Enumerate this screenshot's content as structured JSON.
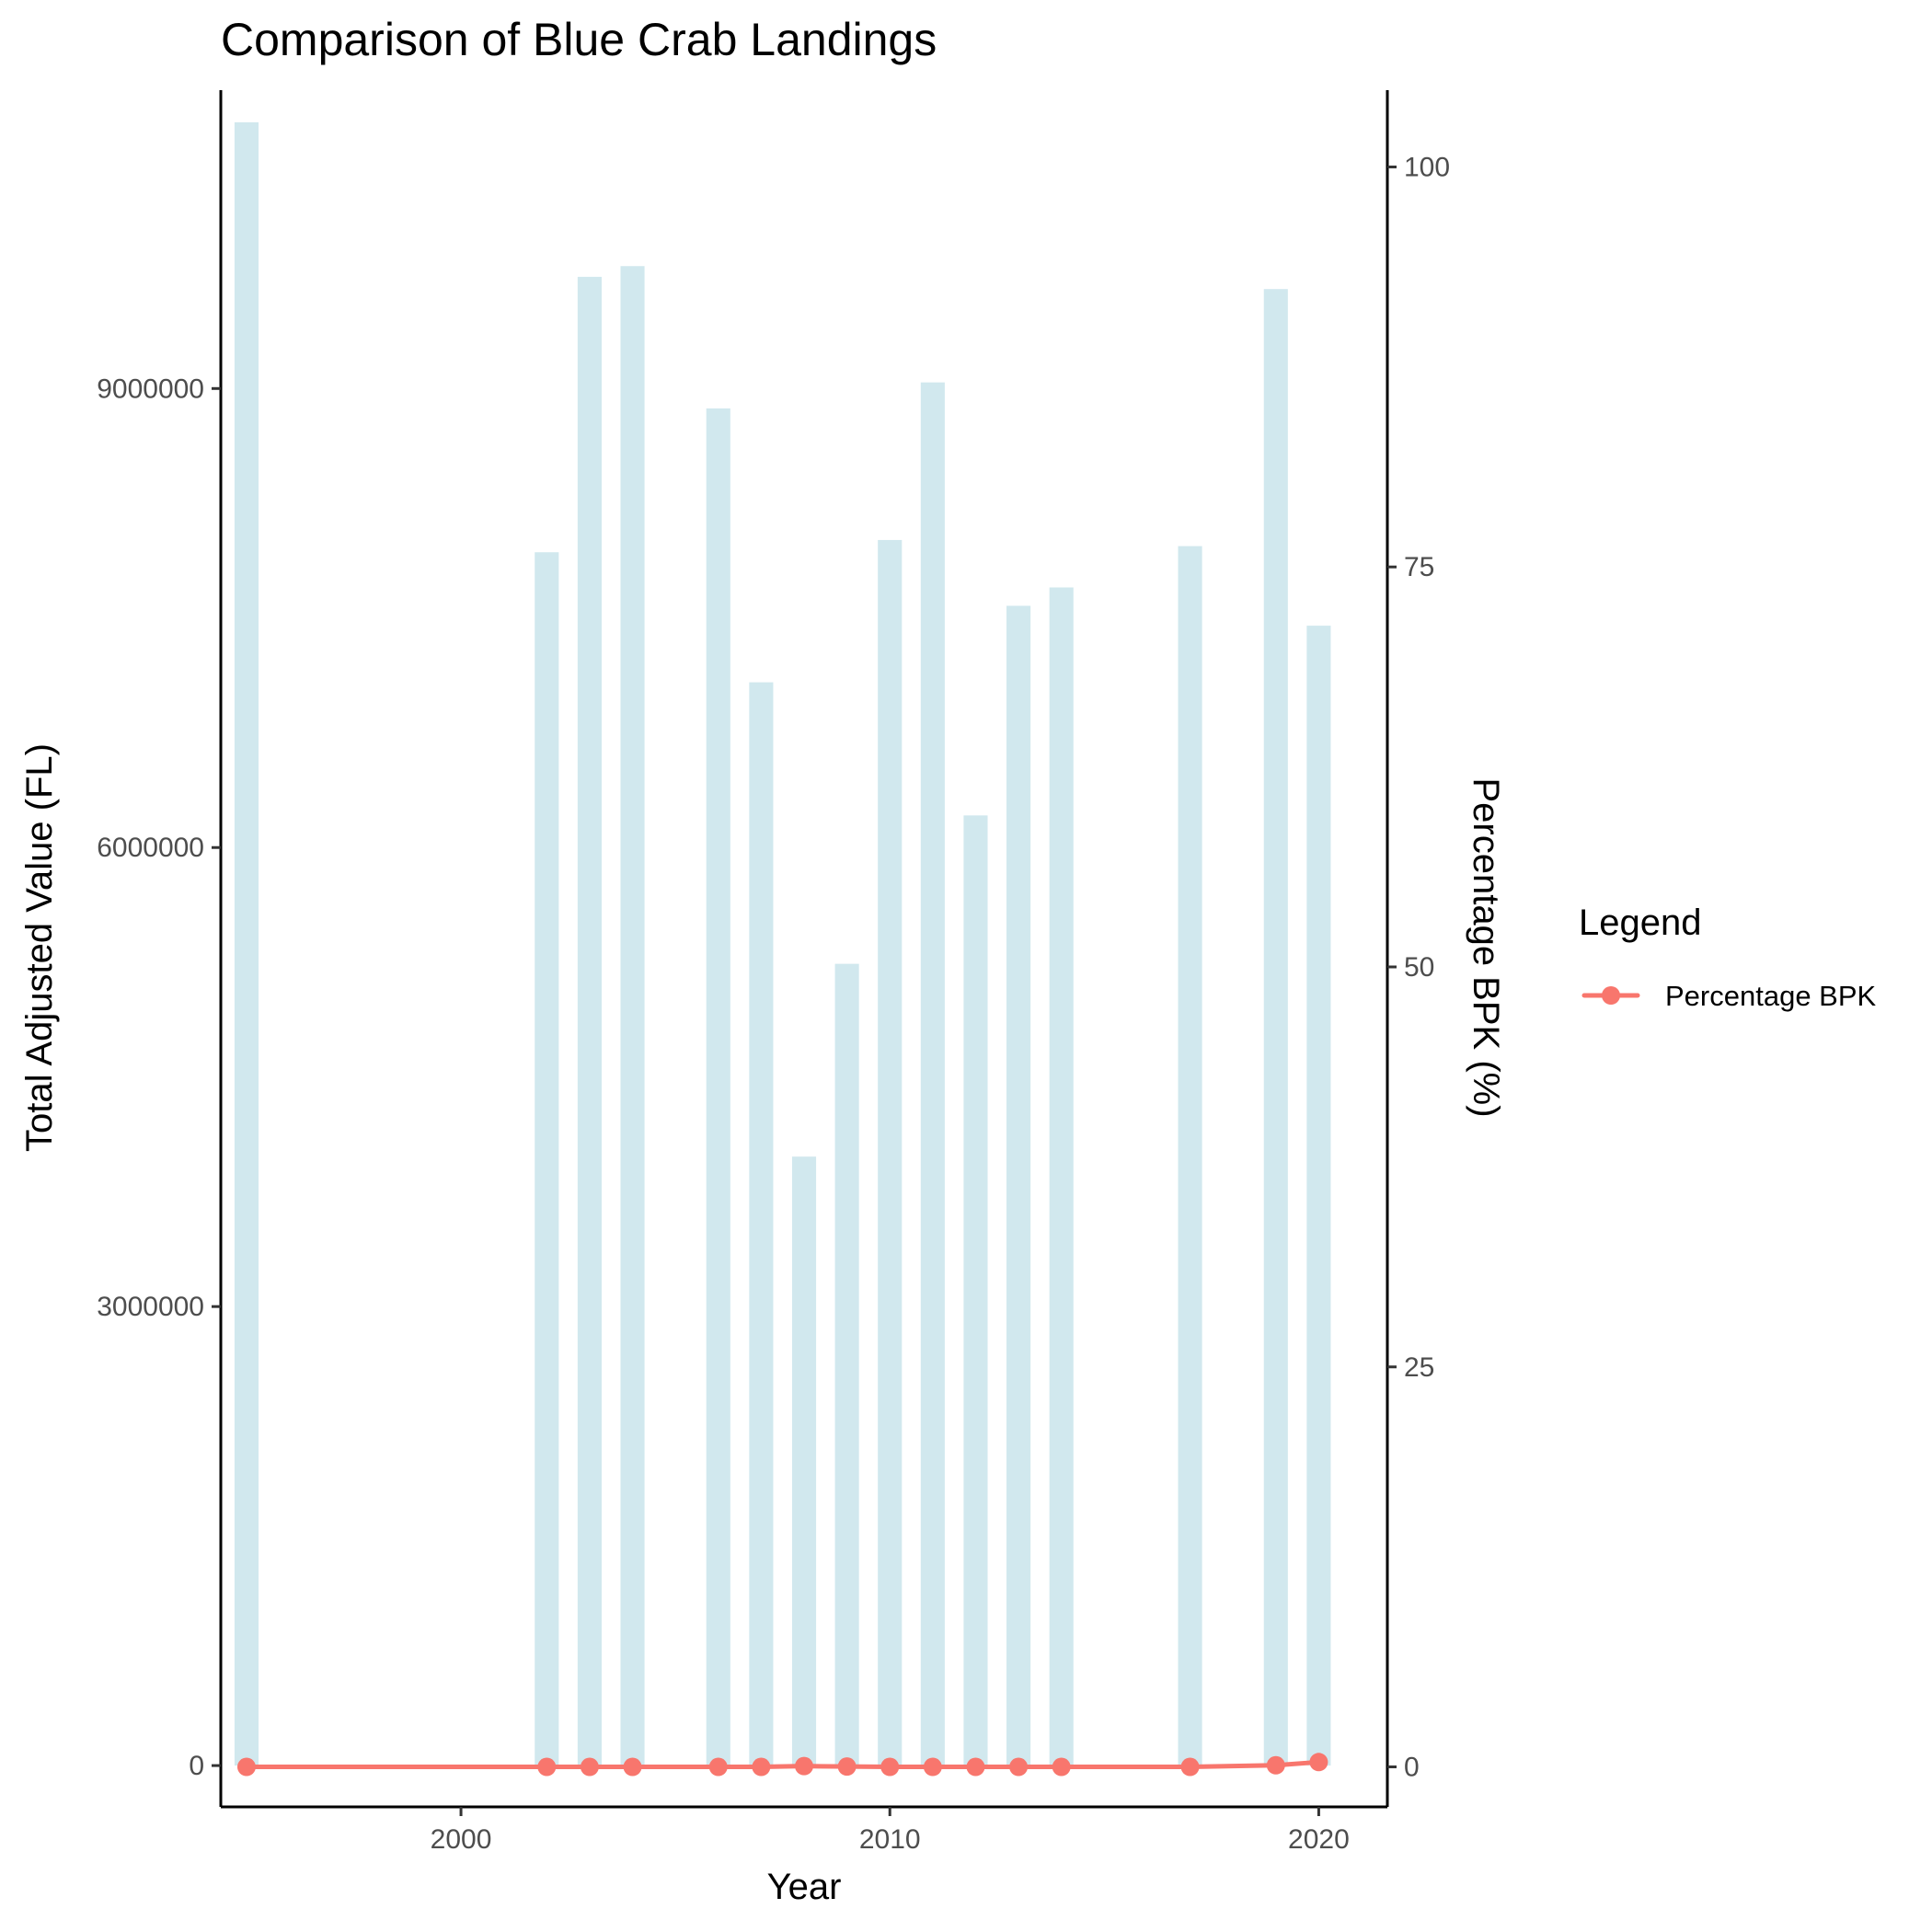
{
  "chart_data": {
    "type": "bar",
    "title": "Comparison of Blue Crab Landings",
    "xlabel": "Year",
    "ylabel": "Total Adjusted Value (FL)",
    "y2label": "Percentage BPK (%)",
    "xlim": [
      1994.4,
      2021.6
    ],
    "ylim": [
      -270000,
      10950000
    ],
    "y2lim": [
      -2.5,
      104.8
    ],
    "x_ticks": [
      2000,
      2010,
      2020
    ],
    "y_ticks": [
      0,
      3000000,
      6000000,
      9000000
    ],
    "y2_ticks": [
      0,
      25,
      50,
      75,
      100
    ],
    "bar_color": "#d1e8ee",
    "line_color": "#f8766d",
    "grid": false,
    "legend": {
      "title": "Legend",
      "position": "right",
      "entries": [
        {
          "name": "Percentage BPK",
          "color": "#f8766d"
        }
      ]
    },
    "series": [
      {
        "name": "Total Adjusted Value",
        "axis": "left",
        "type": "bar",
        "points": [
          {
            "x": 1995,
            "y": 10740000
          },
          {
            "x": 2002,
            "y": 7930000
          },
          {
            "x": 2003,
            "y": 9730000
          },
          {
            "x": 2004,
            "y": 9800000
          },
          {
            "x": 2006,
            "y": 8870000
          },
          {
            "x": 2007,
            "y": 7080000
          },
          {
            "x": 2008,
            "y": 3980000
          },
          {
            "x": 2009,
            "y": 5240000
          },
          {
            "x": 2010,
            "y": 8010000
          },
          {
            "x": 2011,
            "y": 9040000
          },
          {
            "x": 2012,
            "y": 6210000
          },
          {
            "x": 2013,
            "y": 7580000
          },
          {
            "x": 2014,
            "y": 7700000
          },
          {
            "x": 2017,
            "y": 7970000
          },
          {
            "x": 2019,
            "y": 9650000
          },
          {
            "x": 2020,
            "y": 7450000
          }
        ]
      },
      {
        "name": "Percentage BPK",
        "axis": "right",
        "type": "line",
        "points": [
          {
            "x": 1995,
            "y": 0.0
          },
          {
            "x": 2002,
            "y": 0.0
          },
          {
            "x": 2003,
            "y": 0.0
          },
          {
            "x": 2004,
            "y": 0.0
          },
          {
            "x": 2006,
            "y": 0.0
          },
          {
            "x": 2007,
            "y": 0.0
          },
          {
            "x": 2008,
            "y": 0.05
          },
          {
            "x": 2009,
            "y": 0.02
          },
          {
            "x": 2010,
            "y": 0.0
          },
          {
            "x": 2011,
            "y": 0.0
          },
          {
            "x": 2012,
            "y": 0.0
          },
          {
            "x": 2013,
            "y": 0.0
          },
          {
            "x": 2014,
            "y": 0.0
          },
          {
            "x": 2017,
            "y": 0.0
          },
          {
            "x": 2019,
            "y": 0.1
          },
          {
            "x": 2020,
            "y": 0.3
          }
        ]
      }
    ]
  }
}
